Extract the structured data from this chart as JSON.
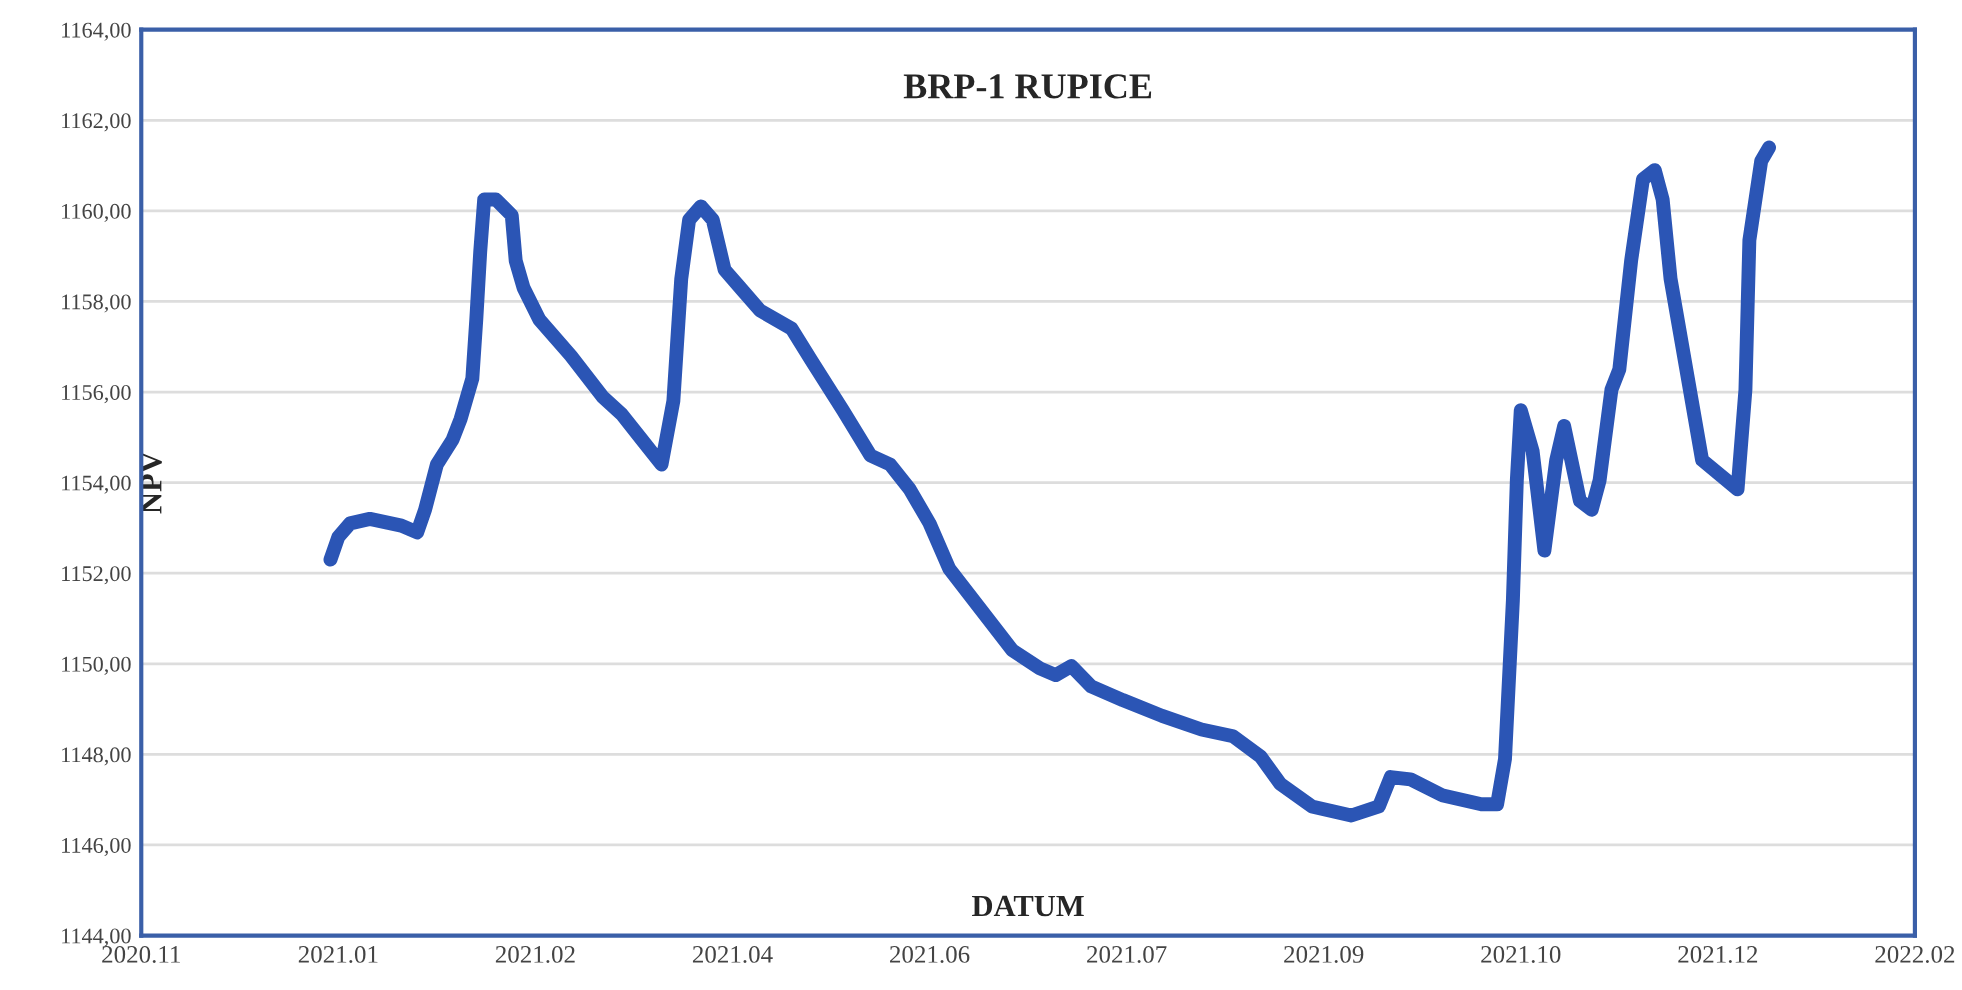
{
  "chart_data": {
    "type": "line",
    "title": "BRP-1 RUPICE",
    "xlabel": "DATUM",
    "ylabel": "NPV",
    "x": [
      "2021-01-01",
      "2021-01-03",
      "2021-01-06",
      "2021-01-11",
      "2021-01-19",
      "2021-01-23",
      "2021-01-25",
      "2021-01-28",
      "2021-02-01",
      "2021-02-03",
      "2021-02-06",
      "2021-02-07",
      "2021-02-08",
      "2021-02-09",
      "2021-02-12",
      "2021-02-16",
      "2021-02-17",
      "2021-02-19",
      "2021-02-23",
      "2021-03-03",
      "2021-03-11",
      "2021-03-16",
      "2021-03-21",
      "2021-03-26",
      "2021-03-29",
      "2021-03-31",
      "2021-04-02",
      "2021-04-05",
      "2021-04-08",
      "2021-04-11",
      "2021-04-15",
      "2021-04-20",
      "2021-04-28",
      "2021-05-03",
      "2021-05-11",
      "2021-05-18",
      "2021-05-23",
      "2021-05-28",
      "2021-06-02",
      "2021-06-07",
      "2021-06-15",
      "2021-06-23",
      "2021-06-30",
      "2021-07-04",
      "2021-07-08",
      "2021-07-13",
      "2021-07-21",
      "2021-07-31",
      "2021-08-10",
      "2021-08-18",
      "2021-08-25",
      "2021-08-30",
      "2021-09-07",
      "2021-09-17",
      "2021-09-24",
      "2021-09-27",
      "2021-10-02",
      "2021-10-10",
      "2021-10-20",
      "2021-10-24",
      "2021-10-26",
      "2021-10-28",
      "2021-10-29",
      "2021-10-30",
      "2021-11-02",
      "2021-11-05",
      "2021-11-08",
      "2021-11-10",
      "2021-11-14",
      "2021-11-17",
      "2021-11-19",
      "2021-11-22",
      "2021-11-24",
      "2021-11-27",
      "2021-11-30",
      "2021-12-03",
      "2021-12-05",
      "2021-12-07",
      "2021-12-11",
      "2021-12-15",
      "2021-12-24",
      "2021-12-26",
      "2021-12-27",
      "2021-12-30",
      "2022-01-01"
    ],
    "series": [
      {
        "color": "#2b55b5",
        "values": [
          1152.3,
          1152.8,
          1153.1,
          1153.2,
          1153.05,
          1152.9,
          1153.4,
          1154.4,
          1154.95,
          1155.4,
          1156.3,
          1157.6,
          1159.1,
          1160.25,
          1160.25,
          1159.9,
          1158.9,
          1158.3,
          1157.6,
          1156.8,
          1155.9,
          1155.5,
          1154.95,
          1154.4,
          1155.8,
          1158.5,
          1159.8,
          1160.1,
          1159.8,
          1158.7,
          1158.3,
          1157.8,
          1157.4,
          1156.7,
          1155.6,
          1154.6,
          1154.4,
          1153.85,
          1153.1,
          1152.1,
          1151.2,
          1150.3,
          1149.9,
          1149.75,
          1149.95,
          1149.5,
          1149.2,
          1148.85,
          1148.55,
          1148.4,
          1147.95,
          1147.35,
          1146.85,
          1146.65,
          1146.85,
          1147.5,
          1147.45,
          1147.1,
          1146.9,
          1146.9,
          1147.9,
          1151.4,
          1154.05,
          1155.6,
          1154.7,
          1152.5,
          1154.5,
          1155.25,
          1153.6,
          1153.4,
          1154.05,
          1156.05,
          1156.5,
          1158.9,
          1160.7,
          1160.9,
          1160.25,
          1158.5,
          1156.5,
          1154.5,
          1153.85,
          1156.05,
          1159.35,
          1161.1,
          1161.4
        ]
      }
    ],
    "xlim": [
      "2020-11-14",
      "2022-02-07"
    ],
    "xticks": [
      {
        "value": "2020-11-14",
        "label": "2020.11"
      },
      {
        "value": "2021-01-03",
        "label": "2021.01"
      },
      {
        "value": "2021-02-22",
        "label": "2021.02"
      },
      {
        "value": "2021-04-13",
        "label": "2021.04"
      },
      {
        "value": "2021-06-02",
        "label": "2021.06"
      },
      {
        "value": "2021-07-22",
        "label": "2021.07"
      },
      {
        "value": "2021-09-10",
        "label": "2021.09"
      },
      {
        "value": "2021-10-30",
        "label": "2021.10"
      },
      {
        "value": "2021-12-19",
        "label": "2021.12"
      },
      {
        "value": "2022-02-07",
        "label": "2022.02"
      }
    ],
    "ylim": [
      1144,
      1164
    ],
    "yticks": [
      {
        "value": 1144,
        "label": "1144,00"
      },
      {
        "value": 1146,
        "label": "1146,00"
      },
      {
        "value": 1148,
        "label": "1148,00"
      },
      {
        "value": 1150,
        "label": "1150,00"
      },
      {
        "value": 1152,
        "label": "1152,00"
      },
      {
        "value": 1154,
        "label": "1154,00"
      },
      {
        "value": 1156,
        "label": "1156,00"
      },
      {
        "value": 1158,
        "label": "1158,00"
      },
      {
        "value": 1160,
        "label": "1160,00"
      },
      {
        "value": 1162,
        "label": "1162,00"
      },
      {
        "value": 1164,
        "label": "1164,00"
      }
    ],
    "grid": "y",
    "marker": "none",
    "line_style": "solid",
    "legend": false
  }
}
